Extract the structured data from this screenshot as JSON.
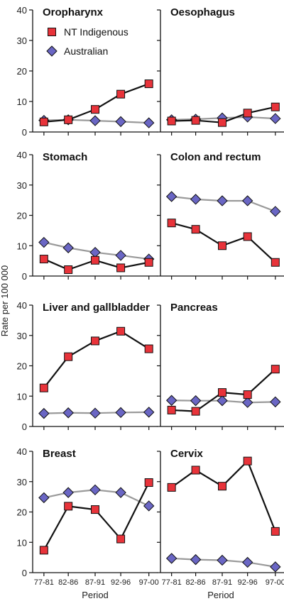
{
  "figure": {
    "ylabel": "Rate per 100 000",
    "xlabel": "Period",
    "legend": {
      "placement": "top-left of first panel"
    }
  },
  "colors": {
    "nt_fill": "#e8333a",
    "nt_line": "#111111",
    "aus_fill": "#6a66c4",
    "aus_line": "#9a9a9a",
    "marker_stroke": "#111111",
    "axis": "#111111"
  },
  "chart_data": [
    {
      "type": "line",
      "title": "Oropharynx",
      "categories": [
        "77-81",
        "82-86",
        "87-91",
        "92-96",
        "97-00"
      ],
      "ylim": [
        0,
        40
      ],
      "yticks": [
        0,
        10,
        20,
        30,
        40
      ],
      "series": [
        {
          "name": "NT Indigenous",
          "values": [
            3.3,
            4.0,
            7.4,
            12.4,
            15.8
          ]
        },
        {
          "name": "Australian",
          "values": [
            3.8,
            4.0,
            3.7,
            3.4,
            3.0
          ]
        }
      ]
    },
    {
      "type": "line",
      "title": "Oesophagus",
      "categories": [
        "77-81",
        "82-86",
        "87-91",
        "92-96",
        "97-00"
      ],
      "ylim": [
        0,
        40
      ],
      "yticks": [
        0,
        10,
        20,
        30,
        40
      ],
      "series": [
        {
          "name": "NT Indigenous",
          "values": [
            3.6,
            3.8,
            3.1,
            6.2,
            8.2
          ]
        },
        {
          "name": "Australian",
          "values": [
            4.0,
            4.2,
            4.6,
            4.9,
            4.4
          ]
        }
      ]
    },
    {
      "type": "line",
      "title": "Stomach",
      "categories": [
        "77-81",
        "82-86",
        "87-91",
        "92-96",
        "97-00"
      ],
      "ylim": [
        0,
        40
      ],
      "yticks": [
        0,
        10,
        20,
        30,
        40
      ],
      "series": [
        {
          "name": "NT Indigenous",
          "values": [
            5.6,
            2.1,
            5.2,
            2.7,
            4.5
          ]
        },
        {
          "name": "Australian",
          "values": [
            11.1,
            9.3,
            7.8,
            6.8,
            5.6
          ]
        }
      ]
    },
    {
      "type": "line",
      "title": "Colon and rectum",
      "categories": [
        "77-81",
        "82-86",
        "87-91",
        "92-96",
        "97-00"
      ],
      "ylim": [
        0,
        40
      ],
      "yticks": [
        0,
        10,
        20,
        30,
        40
      ],
      "series": [
        {
          "name": "NT Indigenous",
          "values": [
            17.5,
            15.4,
            10.0,
            13.0,
            4.5
          ]
        },
        {
          "name": "Australian",
          "values": [
            26.2,
            25.3,
            24.8,
            24.8,
            21.3
          ]
        }
      ]
    },
    {
      "type": "line",
      "title": "Liver and gallbladder",
      "categories": [
        "77-81",
        "82-86",
        "87-91",
        "92-96",
        "97-00"
      ],
      "ylim": [
        0,
        40
      ],
      "yticks": [
        0,
        10,
        20,
        30,
        40
      ],
      "series": [
        {
          "name": "NT Indigenous",
          "values": [
            12.7,
            23.0,
            28.2,
            31.4,
            25.6
          ]
        },
        {
          "name": "Australian",
          "values": [
            4.3,
            4.5,
            4.4,
            4.6,
            4.7
          ]
        }
      ]
    },
    {
      "type": "line",
      "title": "Pancreas",
      "categories": [
        "77-81",
        "82-86",
        "87-91",
        "92-96",
        "97-00"
      ],
      "ylim": [
        0,
        40
      ],
      "yticks": [
        0,
        10,
        20,
        30,
        40
      ],
      "series": [
        {
          "name": "NT Indigenous",
          "values": [
            5.4,
            5.0,
            11.2,
            10.5,
            18.9
          ]
        },
        {
          "name": "Australian",
          "values": [
            8.6,
            8.5,
            8.5,
            7.9,
            8.1
          ]
        }
      ]
    },
    {
      "type": "line",
      "title": "Breast",
      "categories": [
        "77-81",
        "82-86",
        "87-91",
        "92-96",
        "97-00"
      ],
      "ylim": [
        0,
        40
      ],
      "yticks": [
        0,
        10,
        20,
        30,
        40
      ],
      "series": [
        {
          "name": "NT Indigenous",
          "values": [
            7.4,
            21.9,
            20.8,
            11.1,
            29.7
          ]
        },
        {
          "name": "Australian",
          "values": [
            24.7,
            26.4,
            27.3,
            26.4,
            22.0
          ]
        }
      ]
    },
    {
      "type": "line",
      "title": "Cervix",
      "categories": [
        "77-81",
        "82-86",
        "87-91",
        "92-96",
        "97-00"
      ],
      "ylim": [
        0,
        40
      ],
      "yticks": [
        0,
        10,
        20,
        30,
        40
      ],
      "series": [
        {
          "name": "NT Indigenous",
          "values": [
            28.1,
            33.8,
            28.5,
            36.8,
            13.6
          ]
        },
        {
          "name": "Australian",
          "values": [
            4.7,
            4.3,
            4.1,
            3.4,
            1.9
          ]
        }
      ]
    }
  ]
}
